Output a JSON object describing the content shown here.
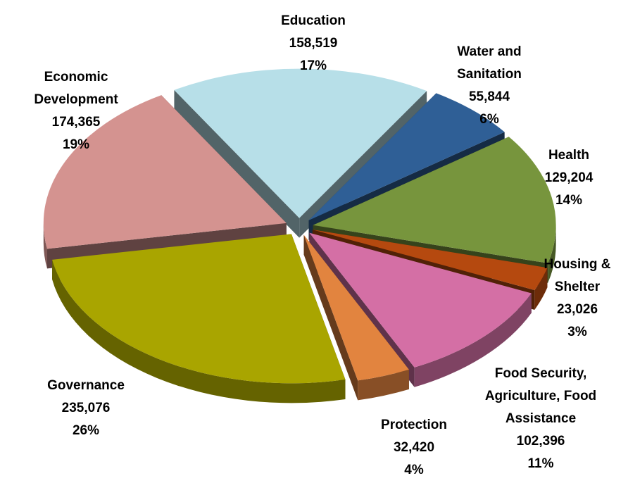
{
  "chart_data": {
    "type": "pie",
    "categories": [
      "Education",
      "Water and Sanitation",
      "Health",
      "Housing & Shelter",
      "Food Security, Agriculture, Food Assistance",
      "Protection",
      "Governance",
      "Economic Development"
    ],
    "values": [
      158519,
      55844,
      129204,
      23026,
      102396,
      32420,
      235076,
      174365
    ],
    "value_labels": [
      "158,519",
      "55,844",
      "129,204",
      "23,026",
      "102,396",
      "32,420",
      "235,076",
      "174,365"
    ],
    "percent_labels": [
      "17%",
      "6%",
      "14%",
      "3%",
      "11%",
      "4%",
      "26%",
      "19%"
    ],
    "colors": [
      "#b7dfe8",
      "#2f5f96",
      "#77953d",
      "#b5490f",
      "#d46fa5",
      "#e2843f",
      "#a9a500",
      "#d49390"
    ]
  }
}
